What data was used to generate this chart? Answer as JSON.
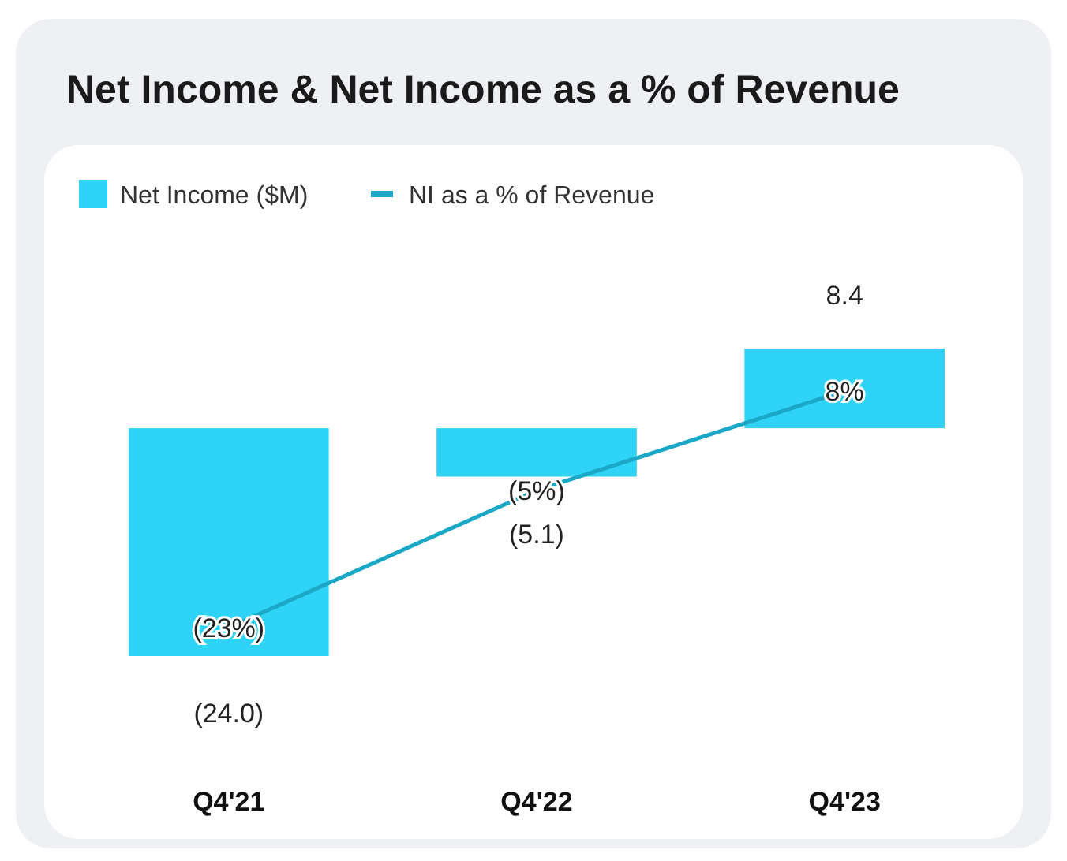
{
  "chart_data": {
    "type": "bar",
    "title": "Net Income & Net Income as a % of Revenue",
    "categories": [
      "Q4'21",
      "Q4'22",
      "Q4'23"
    ],
    "series": [
      {
        "name": "Net Income ($M)",
        "color": "#2ed3f5",
        "values": [
          -24.0,
          -5.1,
          8.4
        ],
        "value_labels": [
          "(24.0)",
          "(5.1)",
          "8.4"
        ]
      },
      {
        "name": "NI as a % of Revenue",
        "type": "line",
        "axis": "y2",
        "color": "#1ba8c6",
        "values": [
          -23,
          -5,
          8
        ],
        "value_labels": [
          "(23%)",
          "(5%)",
          "8%"
        ]
      }
    ],
    "tick_labels": "x",
    "legend": "top left"
  }
}
